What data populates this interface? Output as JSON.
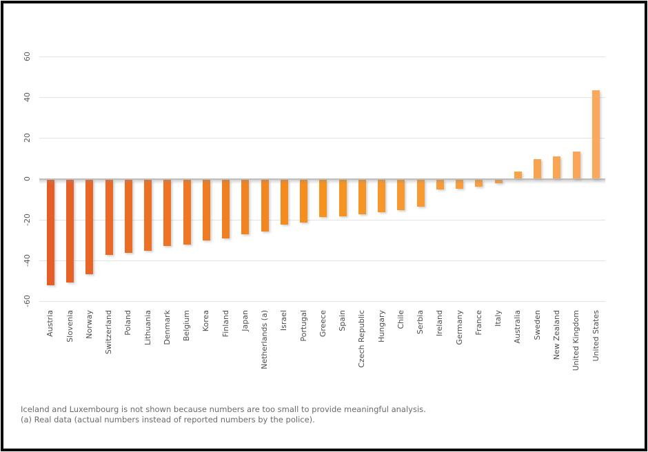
{
  "window": {
    "background_color": "#ffffff",
    "frame_color": "#0b0b0b"
  },
  "chart_data": {
    "type": "bar",
    "title": "",
    "xlabel": "",
    "ylabel": "",
    "ylim": [
      -60,
      60
    ],
    "yticks": [
      60,
      40,
      20,
      0,
      -20,
      -40,
      -60
    ],
    "grid": true,
    "legend": "none",
    "categories": [
      "Austria",
      "Slovenia",
      "Norway",
      "Switzerland",
      "Poland",
      "Lithuania",
      "Denmark",
      "Belgium",
      "Korea",
      "Finland",
      "Japan",
      "Netherlands (a)",
      "Israel",
      "Portugal",
      "Greece",
      "Spain",
      "Czech Republic",
      "Hungary",
      "Chile",
      "Serbia",
      "Ireland",
      "Germany",
      "France",
      "Italy",
      "Australia",
      "Sweden",
      "New Zealand",
      "United Kingdom",
      "United States"
    ],
    "values": [
      -52,
      -50.5,
      -46.5,
      -37,
      -36,
      -35,
      -32.5,
      -32,
      -30,
      -29,
      -27,
      -25.5,
      -22,
      -21,
      -18.5,
      -18,
      -17,
      -16,
      -15,
      -13.5,
      -5,
      -4.5,
      -3.5,
      -2,
      3.5,
      9.5,
      11,
      13.5,
      43.5
    ],
    "bar_color_start": "#E55E28",
    "bar_color_mid": "#F6921E",
    "bar_color_end": "#F9A85C",
    "gridline_color": "#e3e3e3",
    "axis_line_color": "#bdbdbd",
    "tick_label_color": "#595959",
    "category_label_color": "#4d4d4d"
  },
  "footnotes": {
    "line1": "Iceland and Luxembourg is not shown because numbers are too small to provide meaningful analysis.",
    "line2": "(a) Real data (actual numbers instead of reported numbers by the police)."
  }
}
